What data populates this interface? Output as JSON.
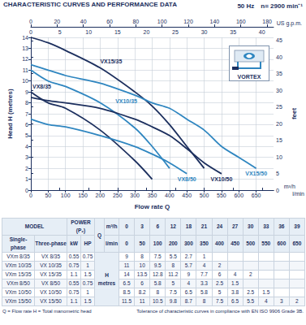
{
  "header": {
    "title": "CHARACTERISTIC CURVES AND PERFORMANCE DATA",
    "frequency": "50 Hz",
    "speed": "n= 2900 min⁻¹"
  },
  "chart_data": {
    "type": "line",
    "xlabel": "Flow rate Q",
    "x_unit": "l/min",
    "ylabel": "Head H (metres)",
    "x": [
      0,
      50,
      100,
      200,
      300,
      350,
      400,
      450,
      500,
      550,
      600,
      650
    ],
    "xlim": [
      0,
      700
    ],
    "xticks": [
      0,
      50,
      100,
      150,
      200,
      250,
      300,
      350,
      400,
      450,
      500,
      550,
      600,
      650
    ],
    "ylim": [
      0,
      14
    ],
    "yticks": [
      0,
      1,
      2,
      3,
      4,
      5,
      6,
      7,
      8,
      9,
      10,
      11,
      12,
      13,
      14
    ],
    "y2label": "feet",
    "y2lim": [
      0,
      45.93
    ],
    "y2ticks": [
      0,
      5,
      10,
      15,
      20,
      25,
      30,
      35,
      40,
      45
    ],
    "x2label": "m³/h",
    "x2lim": [
      0,
      42
    ],
    "x2ticks": [
      0,
      5,
      10,
      15,
      20,
      25,
      30,
      35,
      40
    ],
    "x3label": "US g.p.m.",
    "x3lim": [
      0,
      184.9
    ],
    "x3ticks": [
      0,
      20,
      40,
      60,
      80,
      100,
      120,
      140,
      160,
      180
    ],
    "grid": true,
    "badge": "VORTEX",
    "series": [
      {
        "name": "VX8/35",
        "color": "#1c2f5e",
        "values": [
          9,
          8,
          7.5,
          5.5,
          2.7,
          1,
          null,
          null,
          null,
          null,
          null,
          null
        ]
      },
      {
        "name": "VX10/35",
        "color": "#2f86c0",
        "values": [
          11,
          10,
          9.5,
          8,
          5.7,
          4,
          2,
          null,
          null,
          null,
          null,
          null
        ]
      },
      {
        "name": "VX15/35",
        "color": "#1c2f5e",
        "values": [
          14,
          13.5,
          12.8,
          11.2,
          9,
          7.7,
          6,
          4,
          2,
          null,
          null,
          null
        ]
      },
      {
        "name": "VX8/50",
        "color": "#2f86c0",
        "values": [
          6.5,
          6,
          5.8,
          5,
          4,
          3.3,
          2.5,
          1.5,
          null,
          null,
          null,
          null
        ]
      },
      {
        "name": "VX10/50",
        "color": "#1c2f5e",
        "values": [
          8.5,
          8.2,
          8,
          7.5,
          6.5,
          5.8,
          5,
          3.8,
          2.5,
          1.5,
          null,
          null
        ]
      },
      {
        "name": "VX15/50",
        "color": "#2f86c0",
        "values": [
          11.5,
          11,
          10.5,
          9.8,
          8.7,
          8,
          7.5,
          6.5,
          5.5,
          4,
          3,
          2
        ]
      }
    ]
  },
  "table": {
    "header": {
      "model": "MODEL",
      "single_phase": "Single-phase",
      "three_phase": "Three-phase",
      "power": "POWER (P₂)",
      "kw": "kW",
      "hp": "HP",
      "q": "Q",
      "q_m3h_unit": "m³/h",
      "q_lmin_unit": "l/min",
      "h": "H",
      "h_unit": "metres"
    },
    "q_m3h": [
      0,
      3,
      6,
      12,
      18,
      21,
      24,
      27,
      30,
      33,
      36,
      39
    ],
    "rows": [
      {
        "single_phase": "VXm 8/35",
        "three_phase": "VX 8/35",
        "kw": 0.55,
        "hp": 0.75
      },
      {
        "single_phase": "VXm 10/35",
        "three_phase": "VX 10/35",
        "kw": 0.75,
        "hp": 1
      },
      {
        "single_phase": "VXm 15/35",
        "three_phase": "VX 15/35",
        "kw": 1.1,
        "hp": 1.5
      },
      {
        "single_phase": "VXm 8/50",
        "three_phase": "VX 8/50",
        "kw": 0.55,
        "hp": 0.75
      },
      {
        "single_phase": "VXm 10/50",
        "three_phase": "VX 10/50",
        "kw": 0.75,
        "hp": 1
      },
      {
        "single_phase": "VXm 15/50",
        "three_phase": "VX 15/50",
        "kw": 1.1,
        "hp": 1.5
      }
    ]
  },
  "footer": {
    "left": "Q = Flow rate   H = Total manometric head",
    "right": "Tolerance of characteristic curves in compliance with EN ISO 9906 Grade 3B."
  }
}
